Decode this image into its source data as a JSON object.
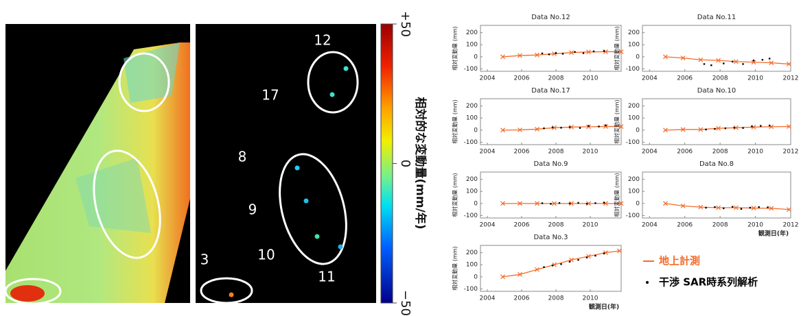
{
  "colorbar": {
    "label": "相対的な変動量(mm/年)",
    "lim": [
      -50,
      50
    ],
    "ticks": [
      {
        "value": 50,
        "label": "+50"
      },
      0,
      {
        "value": -50,
        "label": "−50"
      }
    ]
  },
  "map_labels": [
    "12",
    "17",
    "8",
    "9",
    "10",
    "3",
    "11"
  ],
  "legend": [
    {
      "label": "地上計測",
      "color": "#f26b2a"
    },
    {
      "label": "干渉 SAR時系列解析",
      "color": "#000000"
    }
  ],
  "chart_data": [
    {
      "type": "line",
      "title": "Data No.12",
      "ylabel": "相対変動量 (mm)",
      "xlim": [
        2003.6,
        2011.8
      ],
      "xticks": [
        2004,
        2006,
        2008,
        2010
      ],
      "ylim": [
        -120,
        260
      ],
      "yticks": [
        -100,
        0,
        100,
        200
      ],
      "series": [
        {
          "color": "#f26b2a",
          "x": [
            2004.9,
            2005.9,
            2006.9,
            2007.9,
            2008.9,
            2009.9,
            2010.9,
            2011.8
          ],
          "values": [
            0,
            10,
            15,
            25,
            35,
            40,
            42,
            42
          ]
        },
        {
          "color": "#000000",
          "x": [
            2007.2,
            2007.6,
            2008.0,
            2008.4,
            2009.1,
            2009.6,
            2010.2,
            2010.8
          ],
          "values": [
            28,
            20,
            30,
            25,
            40,
            30,
            45,
            48
          ]
        }
      ]
    },
    {
      "type": "line",
      "title": "Data No.11",
      "ylabel": "相対変動量 (mm)",
      "xlim": [
        2003.6,
        2012
      ],
      "xticks": [
        2004,
        2006,
        2008,
        2010,
        2012
      ],
      "ylim": [
        -120,
        260
      ],
      "yticks": [
        -100,
        0,
        100,
        200
      ],
      "series": [
        {
          "color": "#f26b2a",
          "x": [
            2004.9,
            2005.9,
            2006.9,
            2007.9,
            2008.9,
            2009.9,
            2010.9,
            2011.9
          ],
          "values": [
            0,
            -10,
            -25,
            -30,
            -40,
            -45,
            -50,
            -60
          ]
        },
        {
          "color": "#000000",
          "x": [
            2007.1,
            2007.5,
            2008.2,
            2008.7,
            2009.3,
            2009.9,
            2010.4,
            2010.8
          ],
          "values": [
            -60,
            -70,
            -55,
            -40,
            -60,
            -30,
            -25,
            -15
          ]
        }
      ]
    },
    {
      "type": "line",
      "title": "Data No.17",
      "ylabel": "相対変動量 (mm)",
      "xlim": [
        2003.6,
        2011.8
      ],
      "xticks": [
        2004,
        2006,
        2008,
        2010
      ],
      "ylim": [
        -120,
        260
      ],
      "yticks": [
        -100,
        0,
        100,
        200
      ],
      "series": [
        {
          "color": "#f26b2a",
          "x": [
            2004.9,
            2005.9,
            2006.9,
            2007.9,
            2008.9,
            2009.9,
            2010.9,
            2011.8
          ],
          "values": [
            0,
            2,
            8,
            20,
            25,
            28,
            30,
            30
          ]
        },
        {
          "color": "#000000",
          "x": [
            2007.3,
            2007.8,
            2008.3,
            2008.8,
            2009.4,
            2009.9,
            2010.5,
            2010.9
          ],
          "values": [
            15,
            22,
            20,
            25,
            18,
            35,
            30,
            40
          ]
        }
      ]
    },
    {
      "type": "line",
      "title": "Data No.10",
      "ylabel": "相対変動量 (mm)",
      "xlim": [
        2003.6,
        2012
      ],
      "xticks": [
        2004,
        2006,
        2008,
        2010,
        2012
      ],
      "ylim": [
        -120,
        260
      ],
      "yticks": [
        -100,
        0,
        100,
        200
      ],
      "series": [
        {
          "color": "#f26b2a",
          "x": [
            2004.9,
            2005.9,
            2006.9,
            2007.9,
            2008.9,
            2009.9,
            2010.9,
            2011.9
          ],
          "values": [
            0,
            5,
            5,
            15,
            20,
            25,
            28,
            30
          ]
        },
        {
          "color": "#000000",
          "x": [
            2007.2,
            2007.7,
            2008.3,
            2008.8,
            2009.3,
            2009.8,
            2010.3,
            2010.8
          ],
          "values": [
            5,
            10,
            15,
            20,
            18,
            30,
            35,
            38
          ]
        }
      ]
    },
    {
      "type": "line",
      "title": "Data No.9",
      "ylabel": "相対変動量 (mm)",
      "xlim": [
        2003.6,
        2011.8
      ],
      "xticks": [
        2004,
        2006,
        2008,
        2010
      ],
      "ylim": [
        -120,
        260
      ],
      "yticks": [
        -100,
        0,
        100,
        200
      ],
      "series": [
        {
          "color": "#f26b2a",
          "x": [
            2004.9,
            2005.9,
            2006.9,
            2007.9,
            2008.9,
            2009.9,
            2010.9,
            2011.8
          ],
          "values": [
            0,
            0,
            0,
            0,
            0,
            0,
            0,
            0
          ]
        },
        {
          "color": "#000000",
          "x": [
            2007.2,
            2007.7,
            2008.2,
            2008.8,
            2009.3,
            2009.8,
            2010.3,
            2010.8
          ],
          "values": [
            2,
            -3,
            4,
            0,
            5,
            -2,
            3,
            6
          ]
        }
      ]
    },
    {
      "type": "line",
      "title": "Data No.8",
      "ylabel": "相対変動量 (mm)",
      "xlabel": "観測日(年)",
      "xlim": [
        2003.6,
        2012
      ],
      "xticks": [
        2004,
        2006,
        2008,
        2010,
        2012
      ],
      "ylim": [
        -120,
        260
      ],
      "yticks": [
        -100,
        0,
        100,
        200
      ],
      "series": [
        {
          "color": "#f26b2a",
          "x": [
            2004.9,
            2005.9,
            2006.9,
            2007.9,
            2008.9,
            2009.9,
            2010.9,
            2011.9
          ],
          "values": [
            0,
            -20,
            -30,
            -35,
            -35,
            -38,
            -40,
            -50
          ]
        },
        {
          "color": "#000000",
          "x": [
            2007.2,
            2007.7,
            2008.2,
            2008.7,
            2009.2,
            2009.7,
            2010.2,
            2010.7
          ],
          "values": [
            -35,
            -30,
            -40,
            -28,
            -45,
            -35,
            -30,
            -32
          ]
        }
      ]
    },
    {
      "type": "line",
      "title": "Data No.3",
      "ylabel": "相対変動量 (mm)",
      "xlabel": "観測日(年)",
      "xlim": [
        2003.6,
        2011.8
      ],
      "xticks": [
        2004,
        2006,
        2008,
        2010
      ],
      "ylim": [
        -120,
        260
      ],
      "yticks": [
        -100,
        0,
        100,
        200
      ],
      "series": [
        {
          "color": "#f26b2a",
          "x": [
            2004.9,
            2005.9,
            2006.9,
            2007.9,
            2008.9,
            2009.9,
            2010.9,
            2011.7
          ],
          "values": [
            0,
            20,
            60,
            100,
            140,
            170,
            200,
            215
          ]
        },
        {
          "color": "#000000",
          "x": [
            2007.3,
            2007.8,
            2008.3,
            2008.8,
            2009.3,
            2009.8,
            2010.3,
            2010.8
          ],
          "values": [
            80,
            95,
            105,
            125,
            140,
            160,
            175,
            195
          ]
        }
      ]
    }
  ]
}
